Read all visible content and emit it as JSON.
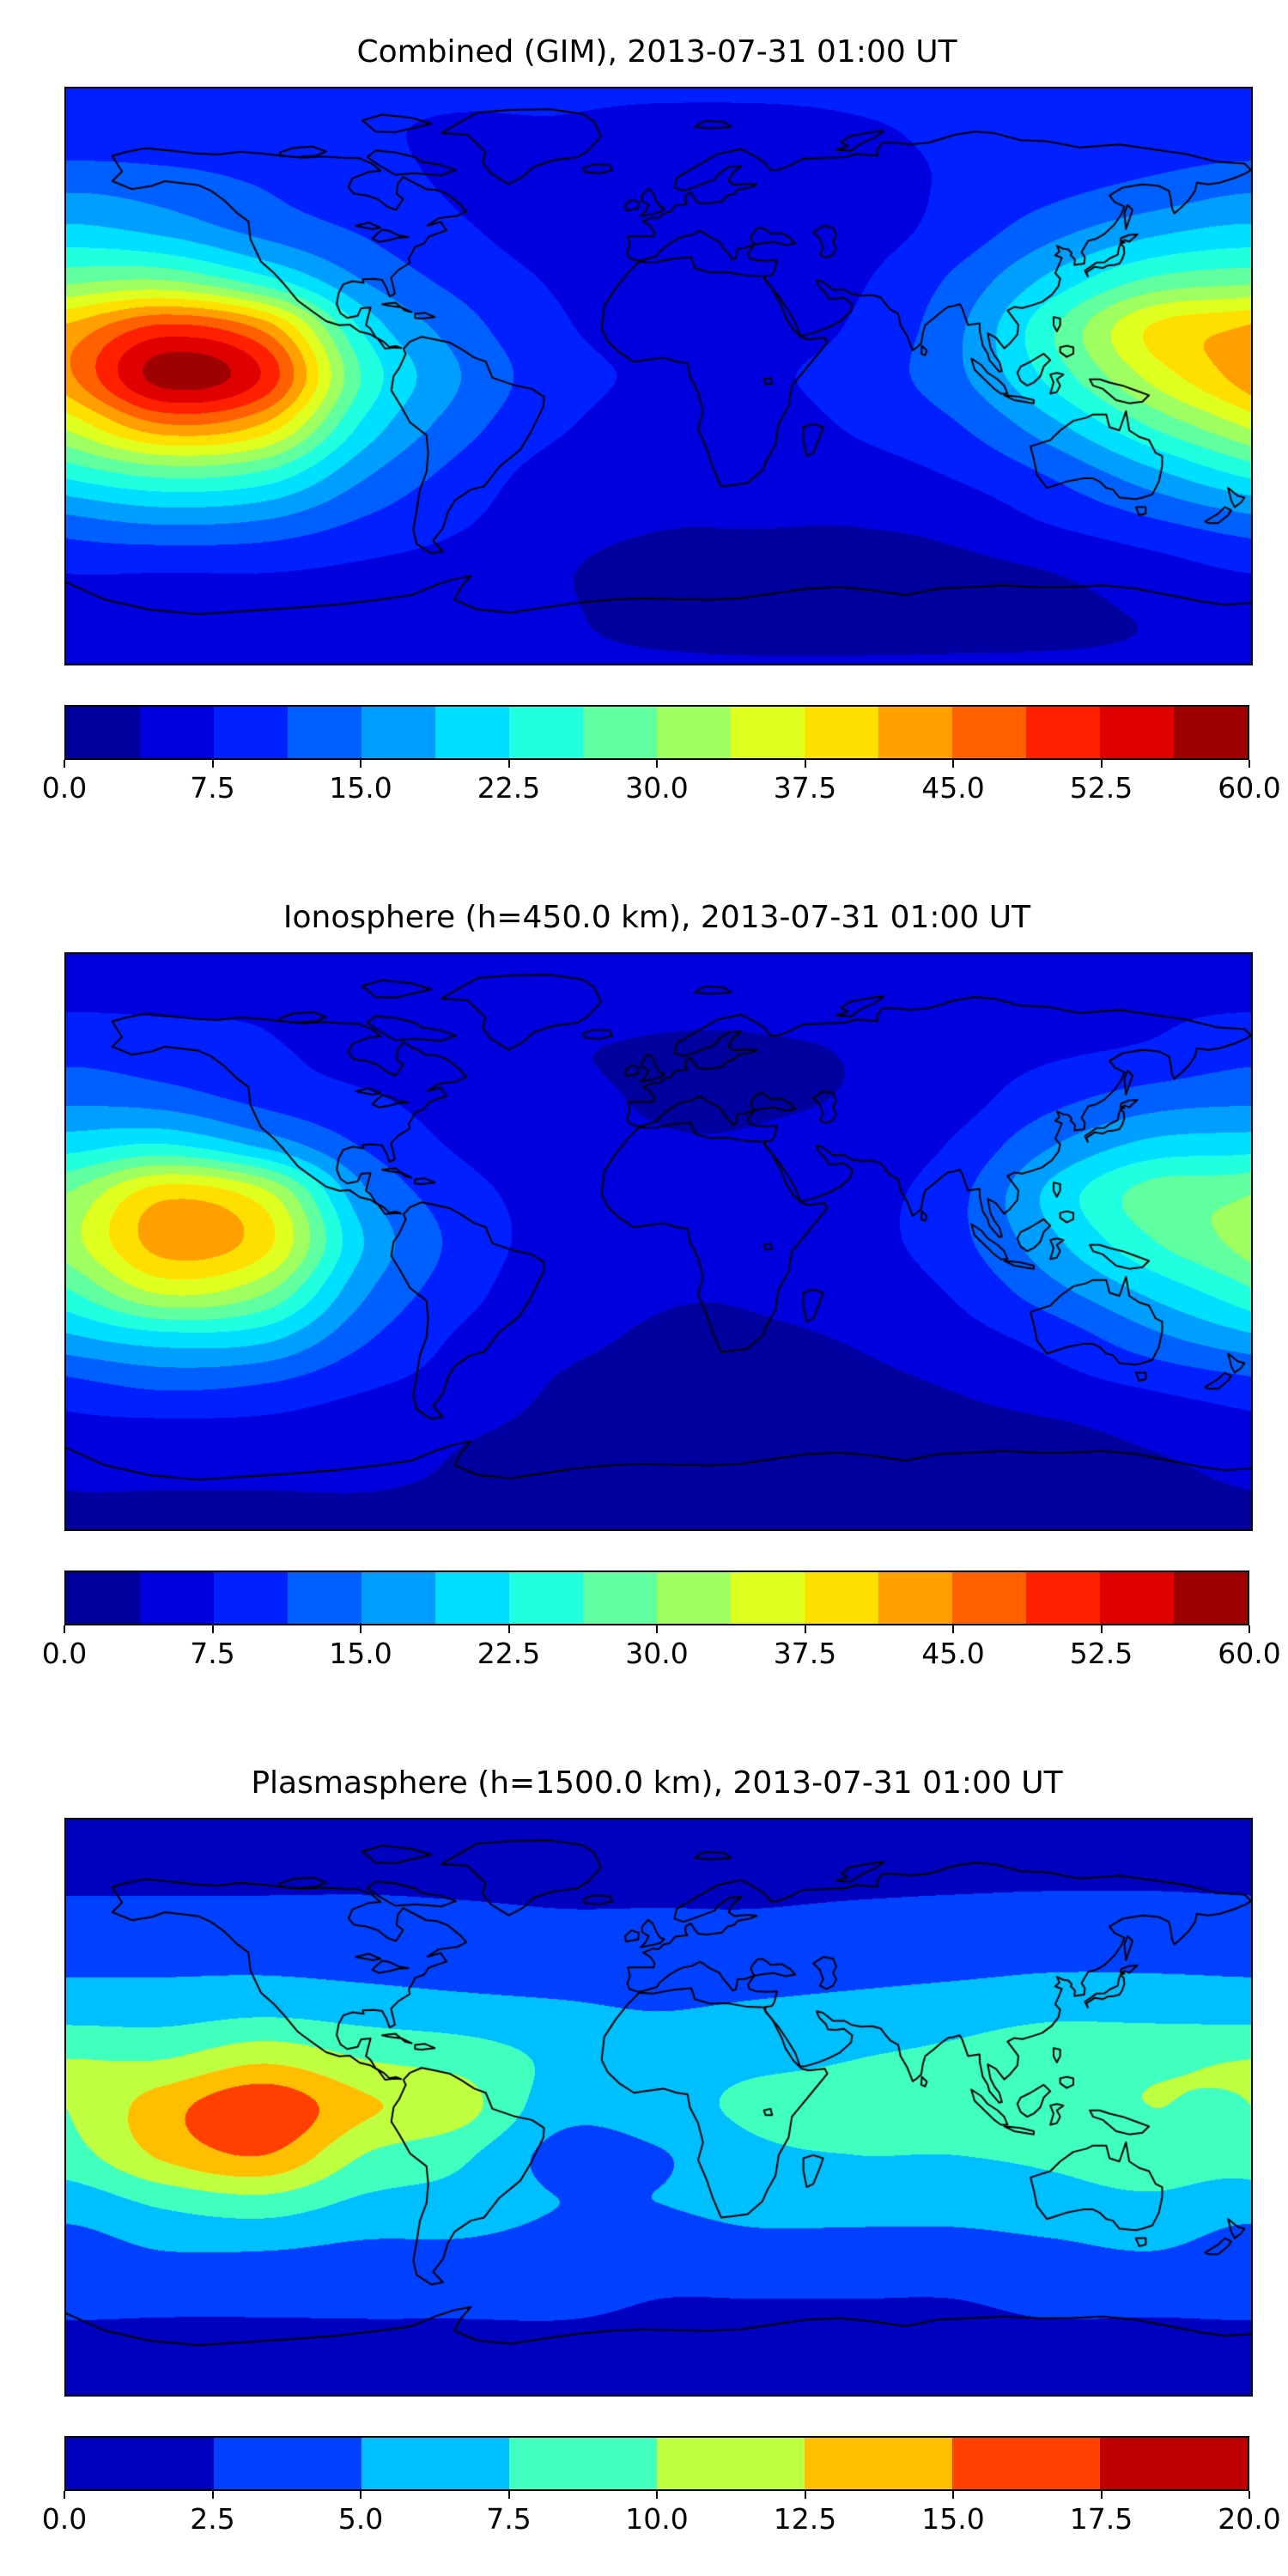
{
  "figure": {
    "description_visible_text_only": "Three global TEC contour maps with jet colorbars",
    "panel_titles": [
      "Combined (GIM), 2013-07-31 01:00 UT",
      "Ionosphere (h=450.0 km), 2013-07-31 01:00 UT",
      "Plasmasphere (h=1500.0 km), 2013-07-31 01:00 UT"
    ]
  },
  "chart_data": [
    {
      "type": "heatmap",
      "title": "Combined (GIM), 2013-07-31 01:00 UT",
      "colormap": "jet",
      "projection": "equirectangular-world-map-with-coastlines",
      "vmin": 0,
      "vmax": 60,
      "n_levels": 16,
      "colorbar_ticks": [
        0.0,
        7.5,
        15.0,
        22.5,
        30.0,
        37.5,
        45.0,
        52.5,
        60.0
      ],
      "colorbar_tick_labels": [
        "0.0",
        "7.5",
        "15.0",
        "22.5",
        "30.0",
        "37.5",
        "45.0",
        "52.5",
        "60.0"
      ],
      "x_lon": [
        -180,
        -150,
        -120,
        -90,
        -60,
        -30,
        0,
        30,
        60,
        90,
        120,
        150,
        180
      ],
      "y_lat": [
        90,
        75,
        60,
        45,
        30,
        15,
        0,
        -15,
        -30,
        -45,
        -60,
        -75,
        -90
      ],
      "values": [
        [
          8,
          8,
          8,
          8,
          8,
          8,
          8,
          8,
          8,
          8,
          8,
          8,
          8
        ],
        [
          9,
          9,
          9,
          8,
          7,
          7,
          6,
          6,
          7,
          8,
          9,
          9,
          9
        ],
        [
          14,
          13,
          11,
          9,
          7,
          6,
          5,
          5,
          6,
          8,
          10,
          12,
          14
        ],
        [
          20,
          18,
          14,
          11,
          8,
          6,
          5,
          5,
          6,
          9,
          14,
          18,
          20
        ],
        [
          29,
          30,
          24,
          15,
          10,
          7,
          5,
          5,
          7,
          12,
          20,
          27,
          29
        ],
        [
          42,
          50,
          44,
          22,
          13,
          8,
          6,
          6,
          8,
          14,
          26,
          38,
          42
        ],
        [
          44,
          58,
          52,
          26,
          15,
          9,
          7,
          7,
          9,
          14,
          24,
          35,
          44
        ],
        [
          35,
          45,
          41,
          22,
          13,
          8,
          6,
          6,
          8,
          11,
          18,
          27,
          35
        ],
        [
          24,
          28,
          26,
          16,
          10,
          6,
          5,
          5,
          6,
          8,
          12,
          18,
          24
        ],
        [
          14,
          16,
          15,
          11,
          8,
          5,
          4,
          4,
          4,
          5,
          8,
          11,
          14
        ],
        [
          8,
          8,
          8,
          7,
          6,
          4,
          3,
          2.5,
          2.5,
          3,
          4,
          6,
          8
        ],
        [
          5,
          5,
          5,
          5,
          5,
          4,
          3,
          2,
          2,
          2.5,
          3,
          4,
          5
        ],
        [
          4,
          4,
          4,
          4,
          4,
          4,
          4,
          4,
          4,
          4,
          4,
          4,
          4
        ]
      ]
    },
    {
      "type": "heatmap",
      "title": "Ionosphere (h=450.0 km), 2013-07-31 01:00 UT",
      "colormap": "jet",
      "projection": "equirectangular-world-map-with-coastlines",
      "vmin": 0,
      "vmax": 60,
      "n_levels": 16,
      "colorbar_ticks": [
        0.0,
        7.5,
        15.0,
        22.5,
        30.0,
        37.5,
        45.0,
        52.5,
        60.0
      ],
      "colorbar_tick_labels": [
        "0.0",
        "7.5",
        "15.0",
        "22.5",
        "30.0",
        "37.5",
        "45.0",
        "52.5",
        "60.0"
      ],
      "x_lon": [
        -180,
        -150,
        -120,
        -90,
        -60,
        -30,
        0,
        30,
        60,
        90,
        120,
        150,
        180
      ],
      "y_lat": [
        90,
        75,
        60,
        45,
        30,
        15,
        0,
        -15,
        -30,
        -45,
        -60,
        -75,
        -90
      ],
      "values": [
        [
          6,
          6,
          6,
          6,
          6,
          6,
          6,
          6,
          6,
          6,
          6,
          6,
          6
        ],
        [
          7,
          7,
          7,
          6,
          5,
          5,
          4.5,
          4.5,
          5,
          6,
          7,
          7,
          7
        ],
        [
          10,
          9,
          8,
          6,
          5,
          4,
          3.5,
          3.5,
          4,
          6,
          7,
          8,
          10
        ],
        [
          14,
          13,
          10,
          8,
          6,
          4.5,
          3.5,
          3.5,
          4,
          6,
          10,
          13,
          14
        ],
        [
          21,
          23,
          18,
          11,
          7,
          5,
          4,
          4,
          5,
          8,
          15,
          20,
          21
        ],
        [
          30,
          40,
          35,
          16,
          9,
          6,
          4.5,
          4.5,
          6,
          10,
          20,
          28,
          30
        ],
        [
          32,
          43,
          39,
          19,
          10,
          6,
          4.5,
          4.5,
          6,
          10,
          18,
          26,
          32
        ],
        [
          26,
          35,
          31,
          16,
          9,
          5,
          4,
          4,
          5,
          8,
          14,
          20,
          26
        ],
        [
          18,
          21,
          20,
          12,
          7,
          4.5,
          3.5,
          3.5,
          4,
          6,
          9,
          14,
          18
        ],
        [
          10,
          12,
          11,
          8,
          6,
          3.5,
          3,
          3,
          3,
          4,
          6,
          8,
          10
        ],
        [
          6,
          6,
          6,
          5,
          4,
          3,
          2,
          2,
          2,
          2.5,
          3,
          4.5,
          6
        ],
        [
          4,
          4,
          4,
          4,
          3.5,
          3,
          2,
          1.5,
          1.5,
          2,
          2.5,
          3,
          4
        ],
        [
          3,
          3,
          3,
          3,
          3,
          3,
          3,
          3,
          3,
          3,
          3,
          3,
          3
        ]
      ]
    },
    {
      "type": "heatmap",
      "title": "Plasmasphere (h=1500.0 km), 2013-07-31 01:00 UT",
      "colormap": "jet",
      "projection": "equirectangular-world-map-with-coastlines",
      "vmin": 0,
      "vmax": 20,
      "n_levels": 8,
      "colorbar_ticks": [
        0.0,
        2.5,
        5.0,
        7.5,
        10.0,
        12.5,
        15.0,
        17.5,
        20.0
      ],
      "colorbar_tick_labels": [
        "0.0",
        "2.5",
        "5.0",
        "7.5",
        "10.0",
        "12.5",
        "15.0",
        "17.5",
        "20.0"
      ],
      "x_lon": [
        -180,
        -150,
        -120,
        -90,
        -60,
        -30,
        0,
        30,
        60,
        90,
        120,
        150,
        180
      ],
      "y_lat": [
        90,
        75,
        60,
        45,
        30,
        15,
        0,
        -15,
        -30,
        -45,
        -60,
        -75,
        -90
      ],
      "values": [
        [
          2,
          2,
          2,
          2,
          2,
          2,
          2,
          2,
          2,
          2,
          2,
          2,
          2
        ],
        [
          2,
          2,
          2,
          2,
          2,
          2,
          2,
          2,
          2,
          2,
          2,
          2,
          2
        ],
        [
          3,
          3,
          3,
          3,
          2.8,
          2.6,
          2.6,
          2.6,
          2.8,
          3,
          3.2,
          3.2,
          3
        ],
        [
          4.5,
          4.5,
          4.5,
          4.2,
          3.8,
          3.4,
          3.2,
          3.4,
          3.8,
          4.2,
          4.6,
          4.6,
          4.5
        ],
        [
          6.5,
          6.5,
          7,
          6.5,
          6,
          5.5,
          5,
          5.5,
          6,
          6.5,
          7,
          6.8,
          6.5
        ],
        [
          10,
          10,
          12,
          10,
          9,
          7,
          6.5,
          7,
          7.5,
          8,
          9,
          9.5,
          10
        ],
        [
          10,
          14,
          17,
          13,
          11,
          6,
          6.5,
          8,
          8,
          8.5,
          9.5,
          10,
          10
        ],
        [
          9,
          13,
          15,
          10,
          8,
          4.2,
          4.8,
          7,
          7.5,
          7.5,
          8,
          9,
          9
        ],
        [
          6,
          8,
          9,
          7,
          6.5,
          5,
          5,
          6,
          6,
          6,
          6.5,
          7,
          6
        ],
        [
          4,
          5,
          5,
          4.5,
          4.5,
          4,
          3.5,
          4,
          4,
          4,
          4.5,
          5,
          4
        ],
        [
          3,
          3,
          3,
          3,
          3,
          3,
          2.5,
          2.5,
          2.5,
          2.5,
          3,
          3,
          3
        ],
        [
          2,
          2,
          2,
          2,
          2,
          2,
          2,
          2,
          2,
          2,
          2,
          2,
          2
        ],
        [
          2,
          2,
          2,
          2,
          2,
          2,
          2,
          2,
          2,
          2,
          2,
          2,
          2
        ]
      ]
    }
  ]
}
